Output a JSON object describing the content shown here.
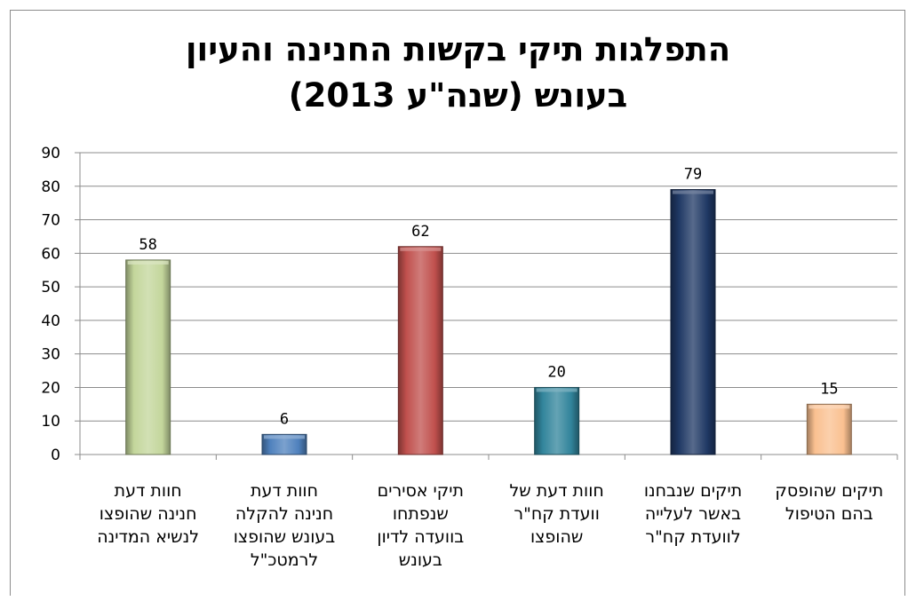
{
  "chart_data": {
    "type": "bar",
    "title": "התפלגות תיקי בקשות החנינה והעיון בעונש (שנה\"ע 2013)",
    "title_lines": [
      "התפלגות תיקי בקשות החנינה והעיון",
      "בעונש (שנה\"ע 2013)"
    ],
    "categories": [
      [
        "חוות דעת",
        "חנינה שהופצו",
        "לנשיא המדינה"
      ],
      [
        "חוות דעת",
        "חנינה להקלה",
        "בעונש שהופצו",
        "לרמטכ\"ל"
      ],
      [
        "תיקי אסירים",
        "שנפתחו",
        "בוועדה לדיון",
        "בעונש"
      ],
      [
        "חוות דעת של",
        "וועדת קח\"ר",
        "שהופצו"
      ],
      [
        "תיקים שנבחנו",
        "באשר לעלייה",
        "לוועדת קח\"ר"
      ],
      [
        "תיקים שהופסק",
        "בהם הטיפול"
      ]
    ],
    "values": [
      58,
      6,
      62,
      20,
      79,
      15
    ],
    "colors": [
      "#c3d69b",
      "#4f81bd",
      "#c0504d",
      "#31849b",
      "#1f3864",
      "#fac090"
    ],
    "ylim": [
      0,
      90
    ],
    "yticks": [
      0,
      10,
      20,
      30,
      40,
      50,
      60,
      70,
      80,
      90
    ],
    "grid": true,
    "legend": "none",
    "xlabel": "",
    "ylabel": ""
  }
}
